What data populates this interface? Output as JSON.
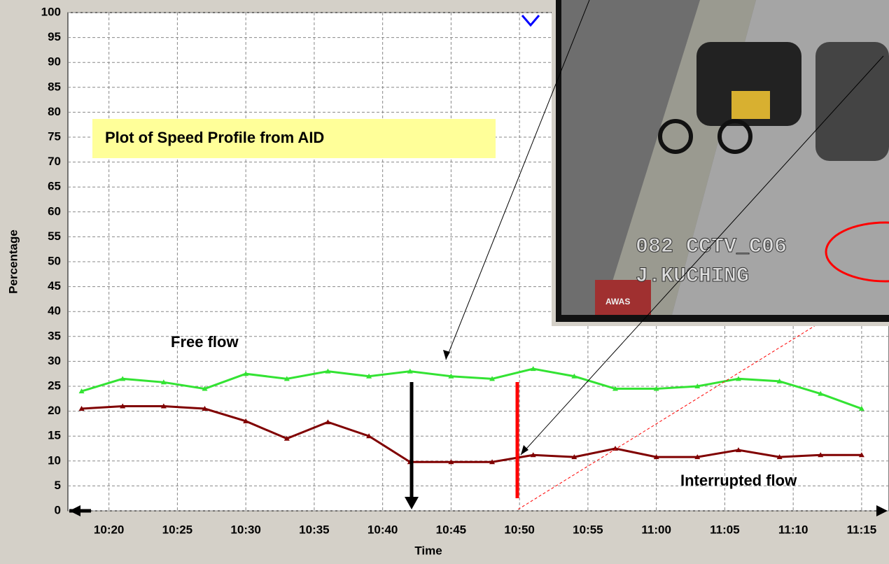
{
  "chart_data": {
    "type": "line",
    "title": "Plot of Speed Profile from AID",
    "x_label": "Time",
    "y_label": "Percentage",
    "annotations": [
      "Free flow",
      "Interrupted flow"
    ],
    "inset_texts": [
      "082 CCTV_C06",
      "J.KUCHING",
      "AWAS"
    ],
    "x": [
      "10:18",
      "10:21",
      "10:24",
      "10:27",
      "10:30",
      "10:33",
      "10:36",
      "10:39",
      "10:42",
      "10:45",
      "10:48",
      "10:51",
      "10:54",
      "10:57",
      "11:00",
      "11:03",
      "11:06",
      "11:09",
      "11:12",
      "11:15"
    ],
    "series": [
      {
        "name": "Free flow",
        "color": "#33e333",
        "values": [
          24,
          26.5,
          25.8,
          24.5,
          27.5,
          26.5,
          28,
          27,
          28,
          27,
          26.5,
          28.5,
          27,
          24.5,
          24.5,
          25,
          26.5,
          26,
          23.5,
          20.5
        ]
      },
      {
        "name": "Interrupted flow",
        "color": "#800000",
        "values": [
          20.5,
          21,
          21,
          20.5,
          18,
          14.5,
          17.8,
          15,
          9.8,
          9.8,
          9.8,
          11.2,
          10.8,
          12.5,
          10.8,
          10.8,
          12.2,
          10.8,
          11.2,
          11.2
        ]
      }
    ],
    "xlim": [
      "10:17",
      "11:17"
    ],
    "xticks": [
      "10:20",
      "10:25",
      "10:30",
      "10:35",
      "10:40",
      "10:45",
      "10:50",
      "10:55",
      "11:00",
      "11:05",
      "11:10",
      "11:15"
    ],
    "ylim": [
      0,
      100
    ],
    "yticks": [
      0,
      5,
      10,
      15,
      20,
      25,
      30,
      35,
      40,
      45,
      50,
      55,
      60,
      65,
      70,
      75,
      80,
      85,
      90,
      95,
      100
    ],
    "grid": true
  }
}
